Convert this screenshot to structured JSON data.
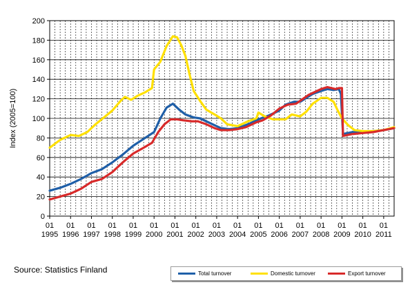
{
  "chart_data": {
    "type": "line",
    "ylabel": "Index (2005=100)",
    "ylim": [
      0,
      200
    ],
    "yticks": [
      0,
      20,
      40,
      60,
      80,
      100,
      120,
      140,
      160,
      180,
      200
    ],
    "x_range": [
      1995.0,
      2011.5
    ],
    "x_ticks": [
      {
        "month": "01",
        "year": "1995"
      },
      {
        "month": "01",
        "year": "1996"
      },
      {
        "month": "01",
        "year": "1997"
      },
      {
        "month": "01",
        "year": "1998"
      },
      {
        "month": "01",
        "year": "1999"
      },
      {
        "month": "01",
        "year": "2000"
      },
      {
        "month": "01",
        "year": "2001"
      },
      {
        "month": "01",
        "year": "2002"
      },
      {
        "month": "01",
        "year": "2003"
      },
      {
        "month": "01",
        "year": "2004"
      },
      {
        "month": "01",
        "year": "2005"
      },
      {
        "month": "01",
        "year": "2006"
      },
      {
        "month": "01",
        "year": "2007"
      },
      {
        "month": "01",
        "year": "2008"
      },
      {
        "month": "01",
        "year": "2009"
      },
      {
        "month": "01",
        "year": "2010"
      },
      {
        "month": "01",
        "year": "2011"
      }
    ],
    "grid": {
      "horizontal": true,
      "vertical_dashed": true
    },
    "legend_position": "bottom-right",
    "series": [
      {
        "name": "Total turnover",
        "color": "#1f5fa8",
        "points": [
          [
            1995.0,
            26
          ],
          [
            1995.5,
            29
          ],
          [
            1996.0,
            33
          ],
          [
            1996.5,
            38
          ],
          [
            1997.0,
            44
          ],
          [
            1997.5,
            48
          ],
          [
            1998.0,
            55
          ],
          [
            1998.5,
            63
          ],
          [
            1999.0,
            72
          ],
          [
            1999.5,
            79
          ],
          [
            2000.0,
            86
          ],
          [
            2000.3,
            100
          ],
          [
            2000.6,
            111
          ],
          [
            2000.9,
            115
          ],
          [
            2001.2,
            109
          ],
          [
            2001.5,
            104
          ],
          [
            2001.9,
            101
          ],
          [
            2002.2,
            100
          ],
          [
            2002.5,
            97
          ],
          [
            2002.9,
            93
          ],
          [
            2003.2,
            90
          ],
          [
            2003.6,
            89
          ],
          [
            2004.0,
            90
          ],
          [
            2004.5,
            94
          ],
          [
            2005.0,
            99
          ],
          [
            2005.5,
            103
          ],
          [
            2006.0,
            108
          ],
          [
            2006.3,
            114
          ],
          [
            2006.7,
            117
          ],
          [
            2007.0,
            117
          ],
          [
            2007.3,
            121
          ],
          [
            2007.6,
            125
          ],
          [
            2008.0,
            128
          ],
          [
            2008.3,
            130
          ],
          [
            2008.6,
            129
          ],
          [
            2008.85,
            130
          ],
          [
            2008.95,
            125
          ],
          [
            2009.05,
            84
          ],
          [
            2009.5,
            86
          ],
          [
            2010.0,
            86
          ],
          [
            2010.5,
            87
          ],
          [
            2011.0,
            88
          ],
          [
            2011.5,
            90
          ]
        ]
      },
      {
        "name": "Domestic turnover",
        "color": "#ffe000",
        "points": [
          [
            1995.0,
            70
          ],
          [
            1995.5,
            78
          ],
          [
            1996.0,
            83
          ],
          [
            1996.4,
            82
          ],
          [
            1996.8,
            86
          ],
          [
            1997.2,
            94
          ],
          [
            1997.6,
            101
          ],
          [
            1998.0,
            108
          ],
          [
            1998.4,
            118
          ],
          [
            1998.6,
            122
          ],
          [
            1998.9,
            119
          ],
          [
            1999.2,
            123
          ],
          [
            1999.6,
            127
          ],
          [
            1999.9,
            131
          ],
          [
            2000.0,
            150
          ],
          [
            2000.3,
            158
          ],
          [
            2000.6,
            174
          ],
          [
            2000.9,
            184
          ],
          [
            2001.1,
            183
          ],
          [
            2001.3,
            175
          ],
          [
            2001.5,
            164
          ],
          [
            2001.7,
            145
          ],
          [
            2001.9,
            128
          ],
          [
            2002.2,
            118
          ],
          [
            2002.5,
            109
          ],
          [
            2002.9,
            104
          ],
          [
            2003.2,
            100
          ],
          [
            2003.5,
            94
          ],
          [
            2004.0,
            92
          ],
          [
            2004.5,
            97
          ],
          [
            2004.9,
            100
          ],
          [
            2005.0,
            106
          ],
          [
            2005.3,
            102
          ],
          [
            2005.7,
            99
          ],
          [
            2006.0,
            99
          ],
          [
            2006.3,
            99
          ],
          [
            2006.6,
            104
          ],
          [
            2007.0,
            102
          ],
          [
            2007.3,
            107
          ],
          [
            2007.6,
            115
          ],
          [
            2008.0,
            121
          ],
          [
            2008.3,
            121
          ],
          [
            2008.6,
            117
          ],
          [
            2008.8,
            108
          ],
          [
            2009.0,
            100
          ],
          [
            2009.3,
            93
          ],
          [
            2009.6,
            88
          ],
          [
            2010.0,
            87
          ],
          [
            2010.5,
            87
          ],
          [
            2011.0,
            88
          ],
          [
            2011.5,
            91
          ]
        ]
      },
      {
        "name": "Export turnover",
        "color": "#d82a2a",
        "points": [
          [
            1995.0,
            17
          ],
          [
            1995.5,
            20
          ],
          [
            1996.0,
            23
          ],
          [
            1996.5,
            28
          ],
          [
            1997.0,
            35
          ],
          [
            1997.5,
            38
          ],
          [
            1998.0,
            45
          ],
          [
            1998.5,
            55
          ],
          [
            1999.0,
            64
          ],
          [
            1999.5,
            70
          ],
          [
            1999.9,
            75
          ],
          [
            2000.2,
            86
          ],
          [
            2000.5,
            94
          ],
          [
            2000.8,
            99
          ],
          [
            2001.1,
            99
          ],
          [
            2001.4,
            98
          ],
          [
            2001.8,
            97
          ],
          [
            2002.1,
            97
          ],
          [
            2002.5,
            94
          ],
          [
            2002.9,
            90
          ],
          [
            2003.2,
            88
          ],
          [
            2003.6,
            88
          ],
          [
            2004.0,
            89
          ],
          [
            2004.4,
            91
          ],
          [
            2004.9,
            96
          ],
          [
            2005.2,
            98
          ],
          [
            2005.6,
            103
          ],
          [
            2006.0,
            110
          ],
          [
            2006.4,
            114
          ],
          [
            2006.8,
            115
          ],
          [
            2007.0,
            118
          ],
          [
            2007.4,
            124
          ],
          [
            2007.8,
            128
          ],
          [
            2008.0,
            130
          ],
          [
            2008.3,
            132
          ],
          [
            2008.7,
            130
          ],
          [
            2008.85,
            131
          ],
          [
            2009.0,
            131
          ],
          [
            2009.05,
            82
          ],
          [
            2009.5,
            84
          ],
          [
            2010.0,
            85
          ],
          [
            2010.5,
            86
          ],
          [
            2011.0,
            88
          ],
          [
            2011.5,
            90
          ]
        ]
      }
    ]
  },
  "source": "Source: Statistics Finland"
}
